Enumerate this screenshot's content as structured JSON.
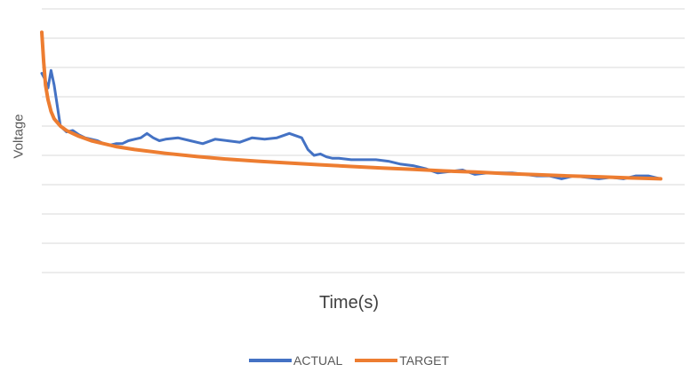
{
  "chart_data": {
    "type": "line",
    "title": "",
    "xlabel": "Time(s)",
    "ylabel": "Voltage",
    "xlim": [
      0,
      100
    ],
    "ylim": [
      0,
      9
    ],
    "grid": true,
    "legend_position": "bottom",
    "series": [
      {
        "name": "ACTUAL",
        "color": "#4472C4",
        "x": [
          0,
          0.5,
          1,
          1.5,
          2,
          2.5,
          3,
          4,
          5,
          6,
          7,
          8,
          9,
          10,
          11,
          12,
          13,
          14,
          15,
          16,
          17,
          18,
          19,
          20,
          22,
          24,
          26,
          28,
          30,
          32,
          34,
          36,
          38,
          40,
          42,
          43,
          44,
          45,
          46,
          47,
          48,
          50,
          52,
          54,
          56,
          58,
          60,
          62,
          64,
          66,
          68,
          70,
          72,
          74,
          76,
          78,
          80,
          82,
          84,
          86,
          88,
          90,
          92,
          94,
          96,
          98,
          100
        ],
        "y": [
          6.8,
          6.6,
          6.3,
          6.9,
          6.4,
          5.7,
          5.0,
          4.8,
          4.85,
          4.7,
          4.6,
          4.55,
          4.5,
          4.4,
          4.35,
          4.4,
          4.4,
          4.5,
          4.55,
          4.6,
          4.75,
          4.6,
          4.5,
          4.55,
          4.6,
          4.5,
          4.4,
          4.55,
          4.5,
          4.45,
          4.6,
          4.55,
          4.6,
          4.75,
          4.6,
          4.2,
          4.0,
          4.05,
          3.95,
          3.9,
          3.9,
          3.85,
          3.85,
          3.85,
          3.8,
          3.7,
          3.65,
          3.55,
          3.4,
          3.45,
          3.5,
          3.35,
          3.4,
          3.4,
          3.4,
          3.35,
          3.3,
          3.3,
          3.2,
          3.3,
          3.25,
          3.2,
          3.25,
          3.2,
          3.3,
          3.3,
          3.2
        ]
      },
      {
        "name": "TARGET",
        "color": "#ED7D31",
        "x": [
          0,
          0.3,
          0.6,
          1,
          1.5,
          2,
          3,
          4,
          5,
          6,
          8,
          10,
          12,
          15,
          20,
          25,
          30,
          35,
          40,
          45,
          50,
          55,
          60,
          65,
          70,
          75,
          80,
          85,
          90,
          95,
          100
        ],
        "y": [
          8.2,
          7.2,
          6.4,
          5.9,
          5.5,
          5.25,
          5.0,
          4.85,
          4.75,
          4.65,
          4.5,
          4.4,
          4.3,
          4.2,
          4.07,
          3.96,
          3.87,
          3.8,
          3.74,
          3.68,
          3.62,
          3.57,
          3.52,
          3.47,
          3.43,
          3.38,
          3.34,
          3.3,
          3.27,
          3.23,
          3.2
        ]
      }
    ]
  }
}
